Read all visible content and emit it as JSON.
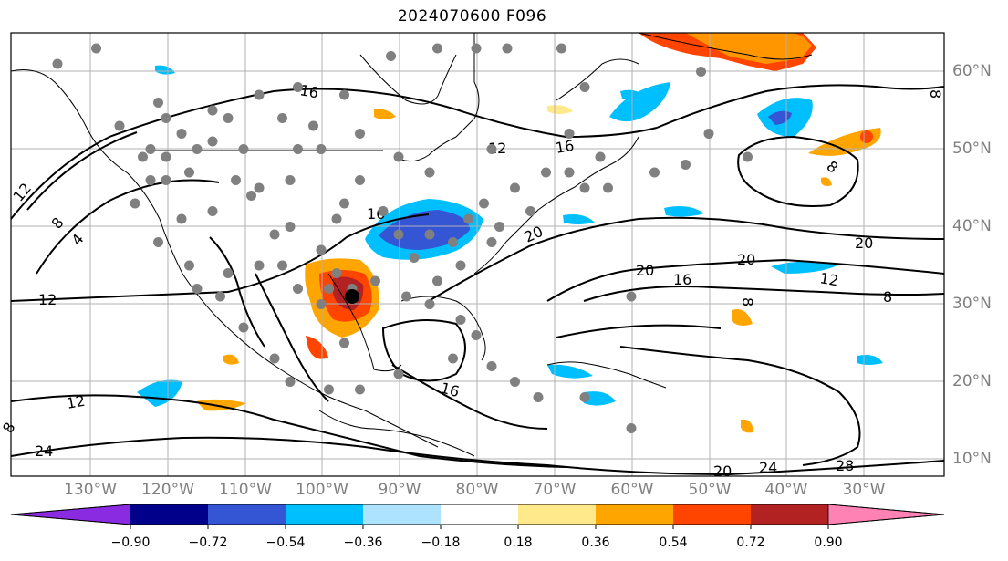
{
  "title": "2024070600 F096",
  "longitude_labels": [
    "130°W",
    "120°W",
    "110°W",
    "100°W",
    "90°W",
    "80°W",
    "70°W",
    "60°W",
    "50°W",
    "40°W",
    "30°W"
  ],
  "latitude_labels": [
    "60°N",
    "50°N",
    "40°N",
    "30°N",
    "20°N",
    "10°N"
  ],
  "contour_labels": [
    "16",
    "12",
    "16",
    "12",
    "8",
    "4",
    "16",
    "20",
    "20",
    "16",
    "20",
    "20",
    "12",
    "8",
    "12",
    "12",
    "16",
    "8",
    "24",
    "20",
    "24",
    "28",
    "8",
    "8",
    "8"
  ],
  "colorbar": {
    "ticks": [
      "−0.90",
      "−0.72",
      "−0.54",
      "−0.36",
      "−0.18",
      "0.18",
      "0.36",
      "0.54",
      "0.72",
      "0.90"
    ],
    "colors": {
      "under": "#8a2be2",
      "bins": [
        "#00008b",
        "#3455d4",
        "#00bfff",
        "#aee3ff",
        "#ffffff",
        "#ffe98a",
        "#ffa500",
        "#ff4500",
        "#b22222"
      ],
      "over": "#ff82b4"
    }
  },
  "colors": {
    "ocean": "#ffffff",
    "coastline": "#000000",
    "grid": "#b0b0b0",
    "station_dot": "#808080",
    "marker": "#000000"
  },
  "stations": [
    [
      -129,
      63
    ],
    [
      -134,
      61
    ],
    [
      -108,
      57
    ],
    [
      -103,
      58
    ],
    [
      -121,
      56
    ],
    [
      -114,
      55
    ],
    [
      -126,
      53
    ],
    [
      -120,
      54
    ],
    [
      -118,
      52
    ],
    [
      -122,
      50
    ],
    [
      -112,
      54
    ],
    [
      -105,
      54
    ],
    [
      -97,
      57
    ],
    [
      -91,
      62
    ],
    [
      -85,
      63
    ],
    [
      -80,
      63
    ],
    [
      -76,
      63
    ],
    [
      -69,
      63
    ],
    [
      -66,
      58
    ],
    [
      -95,
      52
    ],
    [
      -100,
      50
    ],
    [
      -101,
      53
    ],
    [
      -103,
      50
    ],
    [
      -110,
      50
    ],
    [
      -114,
      51
    ],
    [
      -116,
      50
    ],
    [
      -120,
      49
    ],
    [
      -123,
      49
    ],
    [
      -104,
      46
    ],
    [
      -111,
      46
    ],
    [
      -108,
      45
    ],
    [
      -114,
      42
    ],
    [
      -117,
      47
    ],
    [
      -122,
      46
    ],
    [
      -124,
      43
    ],
    [
      -118,
      41
    ],
    [
      -121,
      38
    ],
    [
      -117,
      35
    ],
    [
      -112,
      34
    ],
    [
      -106,
      39
    ],
    [
      -104,
      40
    ],
    [
      -98,
      41
    ],
    [
      -95,
      46
    ],
    [
      -97,
      43
    ],
    [
      -100,
      37
    ],
    [
      -105,
      35
    ],
    [
      -98,
      34
    ],
    [
      -96,
      32
    ],
    [
      -93,
      33
    ],
    [
      -88,
      36
    ],
    [
      -85,
      33
    ],
    [
      -82,
      35
    ],
    [
      -81,
      41
    ],
    [
      -79,
      43
    ],
    [
      -73,
      42
    ],
    [
      -75,
      45
    ],
    [
      -71,
      47
    ],
    [
      -68,
      47
    ],
    [
      -66,
      45
    ],
    [
      -63,
      45
    ],
    [
      -64,
      49
    ],
    [
      -57,
      47
    ],
    [
      -53,
      48
    ],
    [
      -50,
      52
    ],
    [
      -45,
      49
    ],
    [
      -51,
      60
    ],
    [
      -68,
      52
    ],
    [
      -78,
      50
    ],
    [
      -90,
      49
    ],
    [
      -86,
      47
    ],
    [
      -92,
      42
    ],
    [
      -90,
      39
    ],
    [
      -86,
      39
    ],
    [
      -83,
      38
    ],
    [
      -78,
      38
    ],
    [
      -77,
      40
    ],
    [
      -89,
      31
    ],
    [
      -86,
      30
    ],
    [
      -82,
      28
    ],
    [
      -80,
      26
    ],
    [
      -78,
      22
    ],
    [
      -75,
      20
    ],
    [
      -72,
      18
    ],
    [
      -66,
      18
    ],
    [
      -60,
      14
    ],
    [
      -83,
      23
    ],
    [
      -90,
      21
    ],
    [
      -95,
      19
    ],
    [
      -99,
      19
    ],
    [
      -104,
      20
    ],
    [
      -106,
      23
    ],
    [
      -110,
      27
    ],
    [
      -113,
      31
    ],
    [
      -116,
      32
    ],
    [
      -97,
      25
    ],
    [
      -100,
      30
    ],
    [
      -99,
      32
    ],
    [
      -103,
      32
    ],
    [
      -108,
      35
    ],
    [
      -60,
      31
    ],
    [
      -109,
      44
    ],
    [
      -120,
      46
    ]
  ],
  "marker": [
    -96,
    31
  ]
}
